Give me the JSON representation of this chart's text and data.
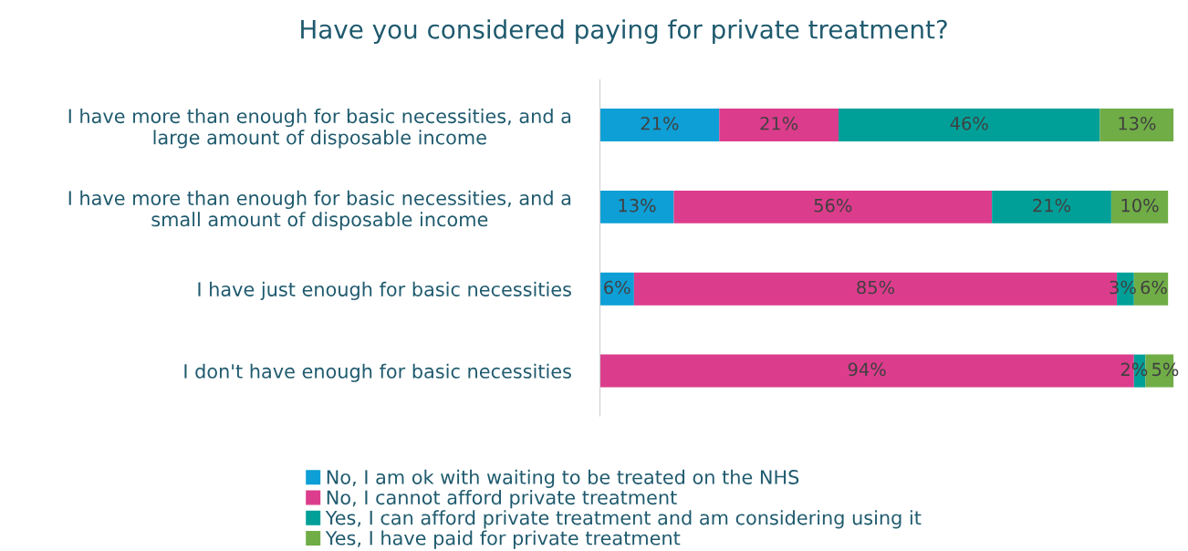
{
  "chart_data": {
    "type": "bar",
    "orientation": "horizontal",
    "stacked": true,
    "title": "Have you considered paying for private treatment?",
    "categories": [
      "I have more than enough for basic necessities, and a\nlarge amount of disposable income",
      "I have more than enough for basic necessities, and a\nsmall amount of disposable income",
      "I have just enough for basic necessities",
      "I don't have enough for basic necessities"
    ],
    "series": [
      {
        "name": "No, I am ok with waiting to be treated on the NHS",
        "color": "#0e9fd6",
        "values": [
          21,
          13,
          6,
          null
        ],
        "value_labels": [
          "21%",
          "13%",
          "6%",
          null
        ]
      },
      {
        "name": "No, I cannot afford private treatment",
        "color": "#dc3c8c",
        "values": [
          21,
          56,
          85,
          94
        ],
        "value_labels": [
          "21%",
          "56%",
          "85%",
          "94%"
        ]
      },
      {
        "name": "Yes, I can afford private treatment and am considering using it",
        "color": "#00a099",
        "values": [
          46,
          21,
          3,
          2
        ],
        "value_labels": [
          "46%",
          "21%",
          "3%",
          "2%"
        ]
      },
      {
        "name": "Yes, I have paid for private treatment",
        "color": "#70ad47",
        "values": [
          13,
          10,
          6,
          5
        ],
        "value_labels": [
          "13%",
          "10%",
          "6%",
          "5%"
        ]
      }
    ],
    "legend": "bottom",
    "grid": false
  }
}
